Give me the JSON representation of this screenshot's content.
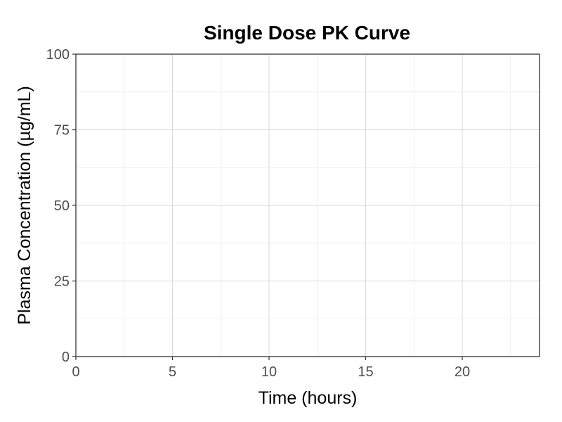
{
  "chart_data": {
    "type": "line",
    "title": "Single Dose PK Curve",
    "xlabel": "Time (hours)",
    "ylabel": "Plasma Concentration (µg/mL)",
    "xlim": [
      0,
      24
    ],
    "ylim": [
      0,
      100
    ],
    "x_ticks": [
      0,
      5,
      10,
      15,
      20
    ],
    "y_ticks": [
      0,
      25,
      50,
      75,
      100
    ],
    "x_tick_labels": [
      "0",
      "5",
      "10",
      "15",
      "20"
    ],
    "y_tick_labels": [
      "0",
      "25",
      "50",
      "75",
      "100"
    ],
    "grid": true,
    "series": [],
    "colors": {
      "background": "#ffffff",
      "panel_border": "#333333",
      "grid_major": "#d9d9d9",
      "grid_minor": "#ececec",
      "tick_text": "#4d4d4d",
      "text": "#000000"
    }
  }
}
